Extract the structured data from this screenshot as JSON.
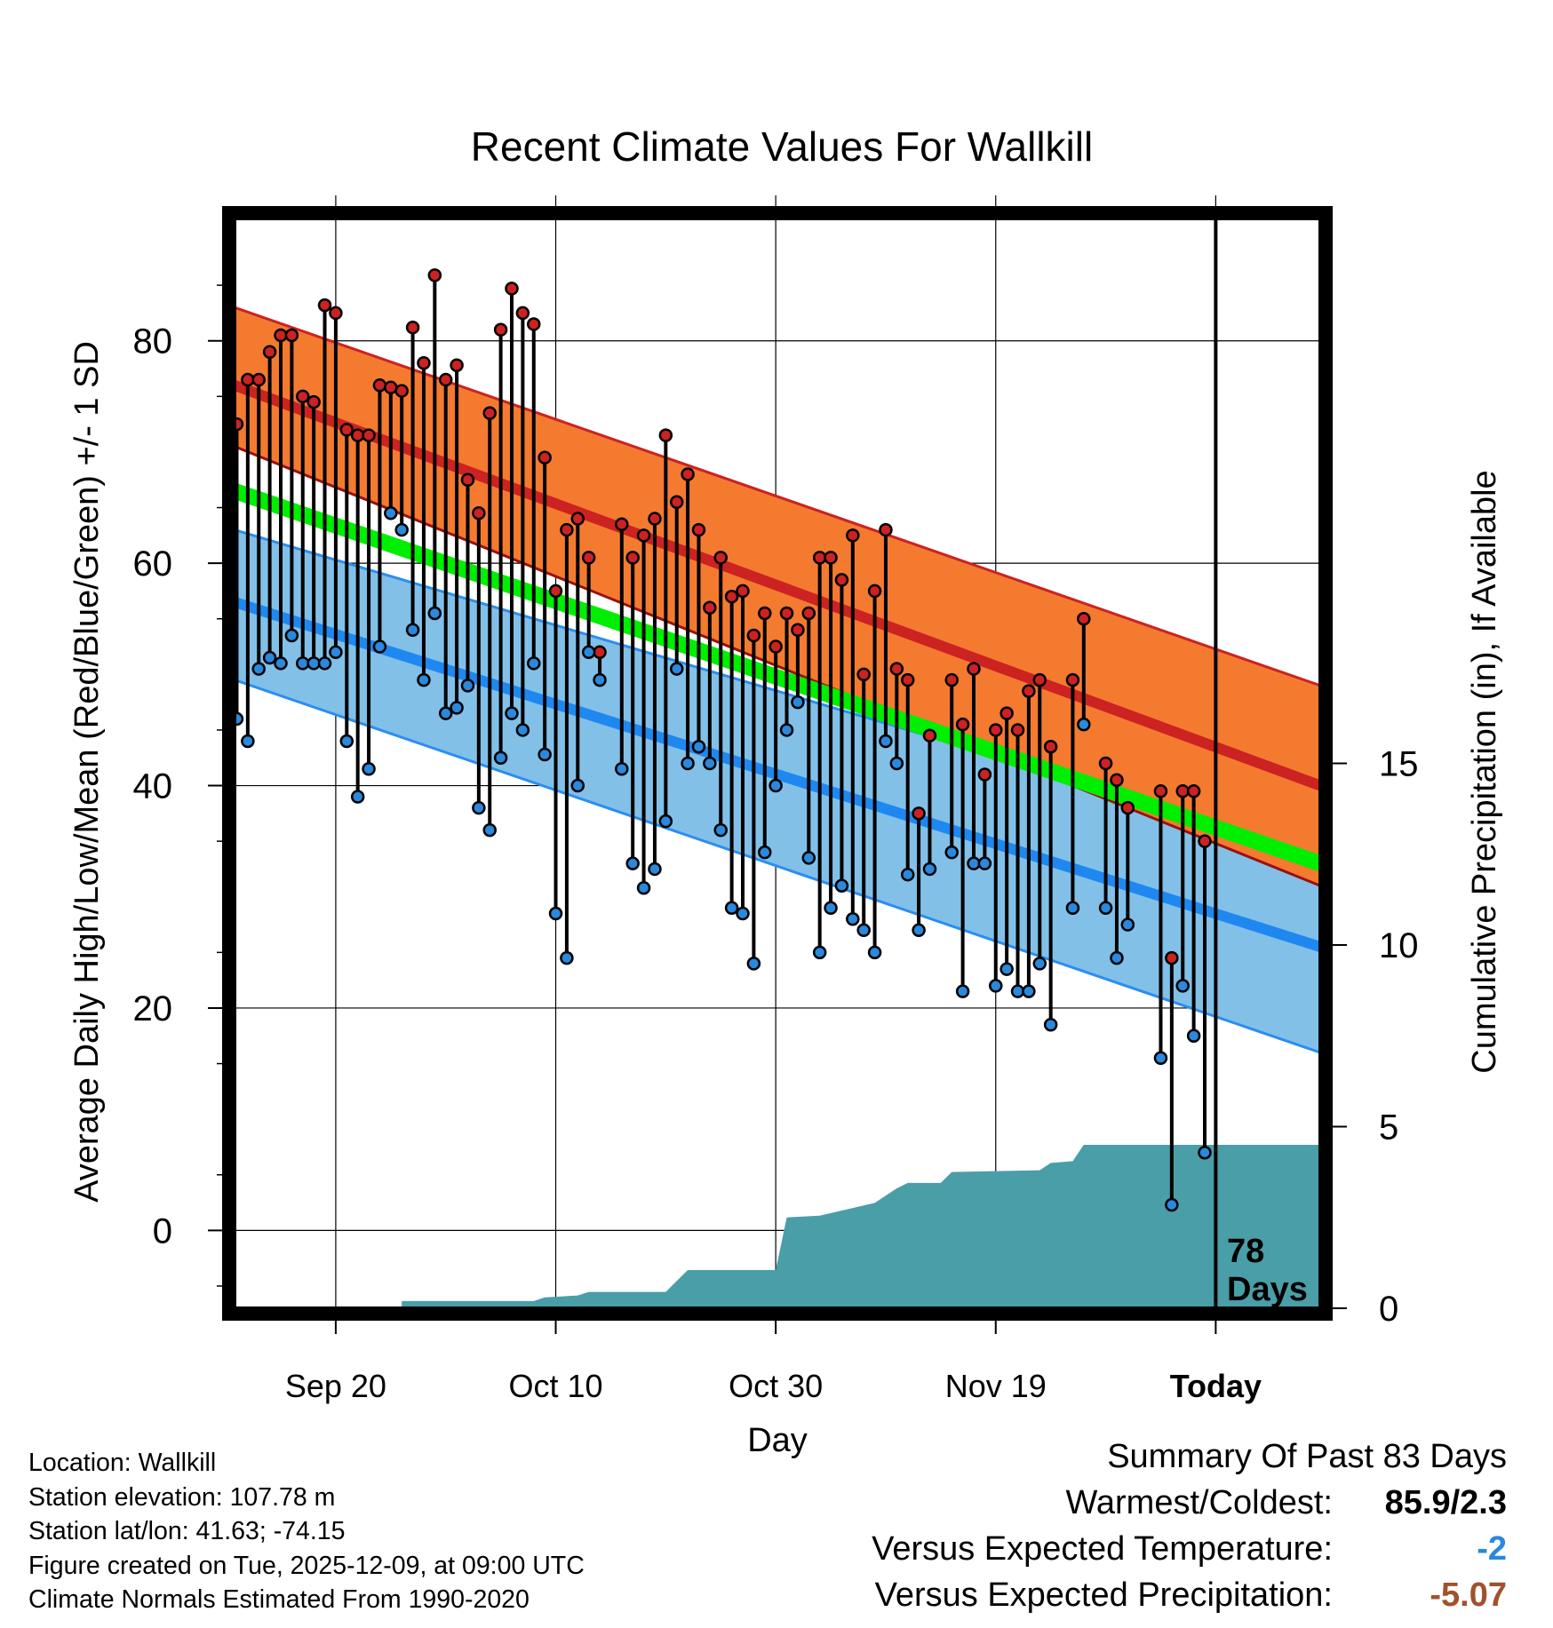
{
  "chart_data": {
    "type": "line",
    "title": "Recent Climate Values For Wallkill",
    "xlabel": "Day",
    "ylabel": "Average Daily High/Low/Mean (Red/Blue/Green) +/- 1 SD",
    "y2label": "Cumulative Precipitation (in), If Available",
    "ylim": [
      -7,
      91
    ],
    "y2lim": [
      0,
      30
    ],
    "xlim": [
      -89.2,
      9.5
    ],
    "x_unit": "days relative to today",
    "y_ticks": [
      0,
      20,
      40,
      60,
      80
    ],
    "y2_ticks": [
      0,
      5,
      10,
      15
    ],
    "x_ticks": [
      {
        "label": "Sep 20",
        "day": -80
      },
      {
        "label": "Oct 10",
        "day": -60
      },
      {
        "label": "Oct 30",
        "day": -40
      },
      {
        "label": "Nov 19",
        "day": -20
      },
      {
        "label": "Today",
        "day": 0
      }
    ],
    "normals": {
      "high_mean": {
        "start": 76,
        "end": 40
      },
      "high_upper": {
        "start": 83,
        "end": 49
      },
      "high_lower": {
        "start": 70.5,
        "end": 31
      },
      "mean_mean": {
        "start": 66.5,
        "end": 33
      },
      "low_mean": {
        "start": 56.5,
        "end": 25.5
      },
      "low_upper": {
        "start": 63,
        "end": 34
      },
      "low_lower": {
        "start": 49.5,
        "end": 16
      }
    },
    "series": [
      {
        "name": "Daily High",
        "color": "#cc2222",
        "points": [
          {
            "day": -89,
            "value": 72.5
          },
          {
            "day": -88,
            "value": 76.5
          },
          {
            "day": -87,
            "value": 76.5
          },
          {
            "day": -86,
            "value": 79
          },
          {
            "day": -85,
            "value": 80.5
          },
          {
            "day": -84,
            "value": 80.5
          },
          {
            "day": -83,
            "value": 75
          },
          {
            "day": -82,
            "value": 74.5
          },
          {
            "day": -81,
            "value": 83.2
          },
          {
            "day": -80,
            "value": 82.5
          },
          {
            "day": -79,
            "value": 72
          },
          {
            "day": -78,
            "value": 71.5
          },
          {
            "day": -77,
            "value": 71.5
          },
          {
            "day": -76,
            "value": 76
          },
          {
            "day": -75,
            "value": 75.8
          },
          {
            "day": -74,
            "value": 75.5
          },
          {
            "day": -73,
            "value": 81.2
          },
          {
            "day": -72,
            "value": 78
          },
          {
            "day": -71,
            "value": 85.9
          },
          {
            "day": -70,
            "value": 76.5
          },
          {
            "day": -69,
            "value": 77.8
          },
          {
            "day": -68,
            "value": 67.5
          },
          {
            "day": -67,
            "value": 64.5
          },
          {
            "day": -66,
            "value": 73.5
          },
          {
            "day": -65,
            "value": 81
          },
          {
            "day": -64,
            "value": 84.7
          },
          {
            "day": -63,
            "value": 82.5
          },
          {
            "day": -62,
            "value": 81.5
          },
          {
            "day": -61,
            "value": 69.5
          },
          {
            "day": -60,
            "value": 57.5
          },
          {
            "day": -59,
            "value": 63
          },
          {
            "day": -58,
            "value": 64
          },
          {
            "day": -57,
            "value": 60.5
          },
          {
            "day": -56,
            "value": 52
          },
          {
            "day": -54,
            "value": 63.5
          },
          {
            "day": -53,
            "value": 60.5
          },
          {
            "day": -52,
            "value": 62.5
          },
          {
            "day": -51,
            "value": 64
          },
          {
            "day": -50,
            "value": 71.5
          },
          {
            "day": -49,
            "value": 65.5
          },
          {
            "day": -48,
            "value": 68
          },
          {
            "day": -47,
            "value": 63
          },
          {
            "day": -46,
            "value": 56
          },
          {
            "day": -45,
            "value": 60.5
          },
          {
            "day": -44,
            "value": 57
          },
          {
            "day": -43,
            "value": 57.5
          },
          {
            "day": -42,
            "value": 53.5
          },
          {
            "day": -41,
            "value": 55.5
          },
          {
            "day": -40,
            "value": 52.5
          },
          {
            "day": -39,
            "value": 55.5
          },
          {
            "day": -38,
            "value": 54
          },
          {
            "day": -37,
            "value": 55.5
          },
          {
            "day": -36,
            "value": 60.5
          },
          {
            "day": -35,
            "value": 60.5
          },
          {
            "day": -34,
            "value": 58.5
          },
          {
            "day": -33,
            "value": 62.5
          },
          {
            "day": -32,
            "value": 50
          },
          {
            "day": -31,
            "value": 57.5
          },
          {
            "day": -30,
            "value": 63
          },
          {
            "day": -29,
            "value": 50.5
          },
          {
            "day": -28,
            "value": 49.5
          },
          {
            "day": -27,
            "value": 37.5
          },
          {
            "day": -26,
            "value": 44.5
          },
          {
            "day": -24,
            "value": 49.5
          },
          {
            "day": -23,
            "value": 45.5
          },
          {
            "day": -22,
            "value": 50.5
          },
          {
            "day": -21,
            "value": 41
          },
          {
            "day": -20,
            "value": 45
          },
          {
            "day": -19,
            "value": 46.5
          },
          {
            "day": -18,
            "value": 45
          },
          {
            "day": -17,
            "value": 48.5
          },
          {
            "day": -16,
            "value": 49.5
          },
          {
            "day": -15,
            "value": 43.5
          },
          {
            "day": -13,
            "value": 49.5
          },
          {
            "day": -12,
            "value": 55
          },
          {
            "day": -10,
            "value": 42
          },
          {
            "day": -9,
            "value": 40.5
          },
          {
            "day": -8,
            "value": 38
          },
          {
            "day": -5,
            "value": 39.5
          },
          {
            "day": -4,
            "value": 24.5
          },
          {
            "day": -3,
            "value": 39.5
          },
          {
            "day": -2,
            "value": 39.5
          },
          {
            "day": -1,
            "value": 35
          }
        ]
      },
      {
        "name": "Daily Low",
        "color": "#2a88dd",
        "points": [
          {
            "day": -89,
            "value": 46
          },
          {
            "day": -88,
            "value": 44
          },
          {
            "day": -87,
            "value": 50.5
          },
          {
            "day": -86,
            "value": 51.5
          },
          {
            "day": -85,
            "value": 51
          },
          {
            "day": -84,
            "value": 53.5
          },
          {
            "day": -83,
            "value": 51
          },
          {
            "day": -82,
            "value": 51
          },
          {
            "day": -81,
            "value": 51
          },
          {
            "day": -80,
            "value": 52
          },
          {
            "day": -79,
            "value": 44
          },
          {
            "day": -78,
            "value": 39
          },
          {
            "day": -77,
            "value": 41.5
          },
          {
            "day": -76,
            "value": 52.5
          },
          {
            "day": -75,
            "value": 64.5
          },
          {
            "day": -74,
            "value": 63
          },
          {
            "day": -73,
            "value": 54
          },
          {
            "day": -72,
            "value": 49.5
          },
          {
            "day": -71,
            "value": 55.5
          },
          {
            "day": -70,
            "value": 46.5
          },
          {
            "day": -69,
            "value": 47
          },
          {
            "day": -68,
            "value": 49
          },
          {
            "day": -67,
            "value": 38
          },
          {
            "day": -66,
            "value": 36
          },
          {
            "day": -65,
            "value": 42.5
          },
          {
            "day": -64,
            "value": 46.5
          },
          {
            "day": -63,
            "value": 45
          },
          {
            "day": -62,
            "value": 51
          },
          {
            "day": -61,
            "value": 42.8
          },
          {
            "day": -60,
            "value": 28.5
          },
          {
            "day": -59,
            "value": 24.5
          },
          {
            "day": -58,
            "value": 40
          },
          {
            "day": -57,
            "value": 52
          },
          {
            "day": -56,
            "value": 49.5
          },
          {
            "day": -54,
            "value": 41.5
          },
          {
            "day": -53,
            "value": 33
          },
          {
            "day": -52,
            "value": 30.8
          },
          {
            "day": -51,
            "value": 32.5
          },
          {
            "day": -50,
            "value": 36.8
          },
          {
            "day": -49,
            "value": 50.5
          },
          {
            "day": -48,
            "value": 42
          },
          {
            "day": -47,
            "value": 43.5
          },
          {
            "day": -46,
            "value": 42
          },
          {
            "day": -45,
            "value": 36
          },
          {
            "day": -44,
            "value": 29
          },
          {
            "day": -43,
            "value": 28.5
          },
          {
            "day": -42,
            "value": 24
          },
          {
            "day": -41,
            "value": 34
          },
          {
            "day": -40,
            "value": 40
          },
          {
            "day": -39,
            "value": 45
          },
          {
            "day": -38,
            "value": 47.5
          },
          {
            "day": -37,
            "value": 33.5
          },
          {
            "day": -36,
            "value": 25
          },
          {
            "day": -35,
            "value": 29
          },
          {
            "day": -34,
            "value": 31
          },
          {
            "day": -33,
            "value": 28
          },
          {
            "day": -32,
            "value": 27
          },
          {
            "day": -31,
            "value": 25
          },
          {
            "day": -30,
            "value": 44
          },
          {
            "day": -29,
            "value": 42
          },
          {
            "day": -28,
            "value": 32
          },
          {
            "day": -27,
            "value": 27
          },
          {
            "day": -26,
            "value": 32.5
          },
          {
            "day": -24,
            "value": 34
          },
          {
            "day": -23,
            "value": 21.5
          },
          {
            "day": -22,
            "value": 33
          },
          {
            "day": -21,
            "value": 33
          },
          {
            "day": -20,
            "value": 22
          },
          {
            "day": -19,
            "value": 23.5
          },
          {
            "day": -18,
            "value": 21.5
          },
          {
            "day": -17,
            "value": 21.5
          },
          {
            "day": -16,
            "value": 24
          },
          {
            "day": -15,
            "value": 18.5
          },
          {
            "day": -13,
            "value": 29
          },
          {
            "day": -12,
            "value": 45.5
          },
          {
            "day": -10,
            "value": 29
          },
          {
            "day": -9,
            "value": 24.5
          },
          {
            "day": -8,
            "value": 27.5
          },
          {
            "day": -5,
            "value": 15.5
          },
          {
            "day": -4,
            "value": 2.3
          },
          {
            "day": -3,
            "value": 22
          },
          {
            "day": -2,
            "value": 17.5
          },
          {
            "day": -1,
            "value": 7
          }
        ]
      }
    ],
    "cumulative_precipitation": [
      {
        "day": -89.2,
        "value": 0
      },
      {
        "day": -74,
        "value": 0
      },
      {
        "day": -74,
        "value": 0.2
      },
      {
        "day": -62,
        "value": 0.2
      },
      {
        "day": -61,
        "value": 0.3
      },
      {
        "day": -58,
        "value": 0.35
      },
      {
        "day": -57,
        "value": 0.45
      },
      {
        "day": -50,
        "value": 0.45
      },
      {
        "day": -48,
        "value": 1.05
      },
      {
        "day": -40,
        "value": 1.05
      },
      {
        "day": -39,
        "value": 2.5
      },
      {
        "day": -36,
        "value": 2.55
      },
      {
        "day": -31,
        "value": 2.9
      },
      {
        "day": -29,
        "value": 3.3
      },
      {
        "day": -28,
        "value": 3.45
      },
      {
        "day": -25,
        "value": 3.45
      },
      {
        "day": -24,
        "value": 3.75
      },
      {
        "day": -16,
        "value": 3.8
      },
      {
        "day": -15,
        "value": 4
      },
      {
        "day": -13,
        "value": 4.05
      },
      {
        "day": -12,
        "value": 4.5
      },
      {
        "day": 9.5,
        "value": 4.5
      }
    ],
    "today_marker": {
      "label_line1": "78",
      "label_line2": "Days",
      "day": 0
    }
  },
  "footer": {
    "location": "Location: Wallkill",
    "elevation": "Station elevation: 107.78 m",
    "latlon": "Station lat/lon: 41.63; -74.15",
    "created": "Figure created on Tue, 2025-12-09, at 09:00 UTC",
    "normals": "Climate Normals Estimated From 1990-2020"
  },
  "summary": {
    "title": "Summary Of Past 83 Days",
    "warmest_label": "Warmest/Coldest:",
    "warmest_value": "85.9/2.3",
    "temp_label": "Versus Expected Temperature:",
    "temp_value": "-2",
    "precip_label": "Versus Expected Precipitation:",
    "precip_value": "-5.07"
  },
  "colors": {
    "high_band": "#f47a30",
    "high_line": "#cc2222",
    "high_lower": "#9a1010",
    "mean_band": "#00ee00",
    "low_band": "#82c0e8",
    "low_line": "#1e88f0",
    "low_edge": "#2a8ef0",
    "precip": "#4a9ea8",
    "temp_summary": "#2a88dd",
    "precip_summary": "#a0522d",
    "high_point": "#cc2222",
    "low_point": "#2a88dd"
  }
}
